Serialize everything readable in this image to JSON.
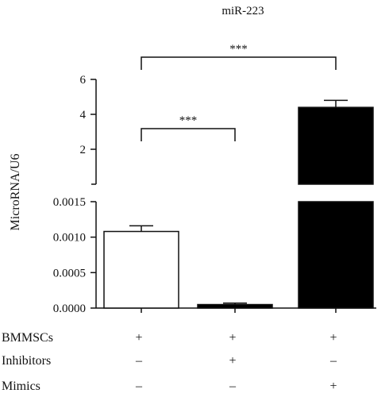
{
  "chart_data": {
    "type": "bar",
    "title": "miR-223",
    "ylabel": "MicroRNA/U6",
    "axis_break": true,
    "upper_axis": {
      "ylim": [
        0,
        6
      ],
      "ticks": [
        "2",
        "4",
        "6"
      ]
    },
    "lower_axis": {
      "ylim": [
        0,
        0.0015
      ],
      "ticks": [
        "0.0000",
        "0.0005",
        "0.0010",
        "0.0015"
      ]
    },
    "bars": [
      {
        "value": 0.00108,
        "error": 8e-05,
        "fill": "#ffffff"
      },
      {
        "value": 5e-05,
        "error": 2e-05,
        "fill": "#000000"
      },
      {
        "value": 4.4,
        "error": 0.4,
        "fill": "#000000"
      }
    ],
    "significance": [
      {
        "from": 0,
        "to": 1,
        "label": "***"
      },
      {
        "from": 0,
        "to": 2,
        "label": "***"
      }
    ],
    "conditions": [
      {
        "name": "BMMSCs",
        "values": [
          "+",
          "+",
          "+"
        ]
      },
      {
        "name": "Inhibitors",
        "values": [
          "–",
          "+",
          "–"
        ]
      },
      {
        "name": "Mimics",
        "values": [
          "–",
          "–",
          "+"
        ]
      }
    ]
  }
}
